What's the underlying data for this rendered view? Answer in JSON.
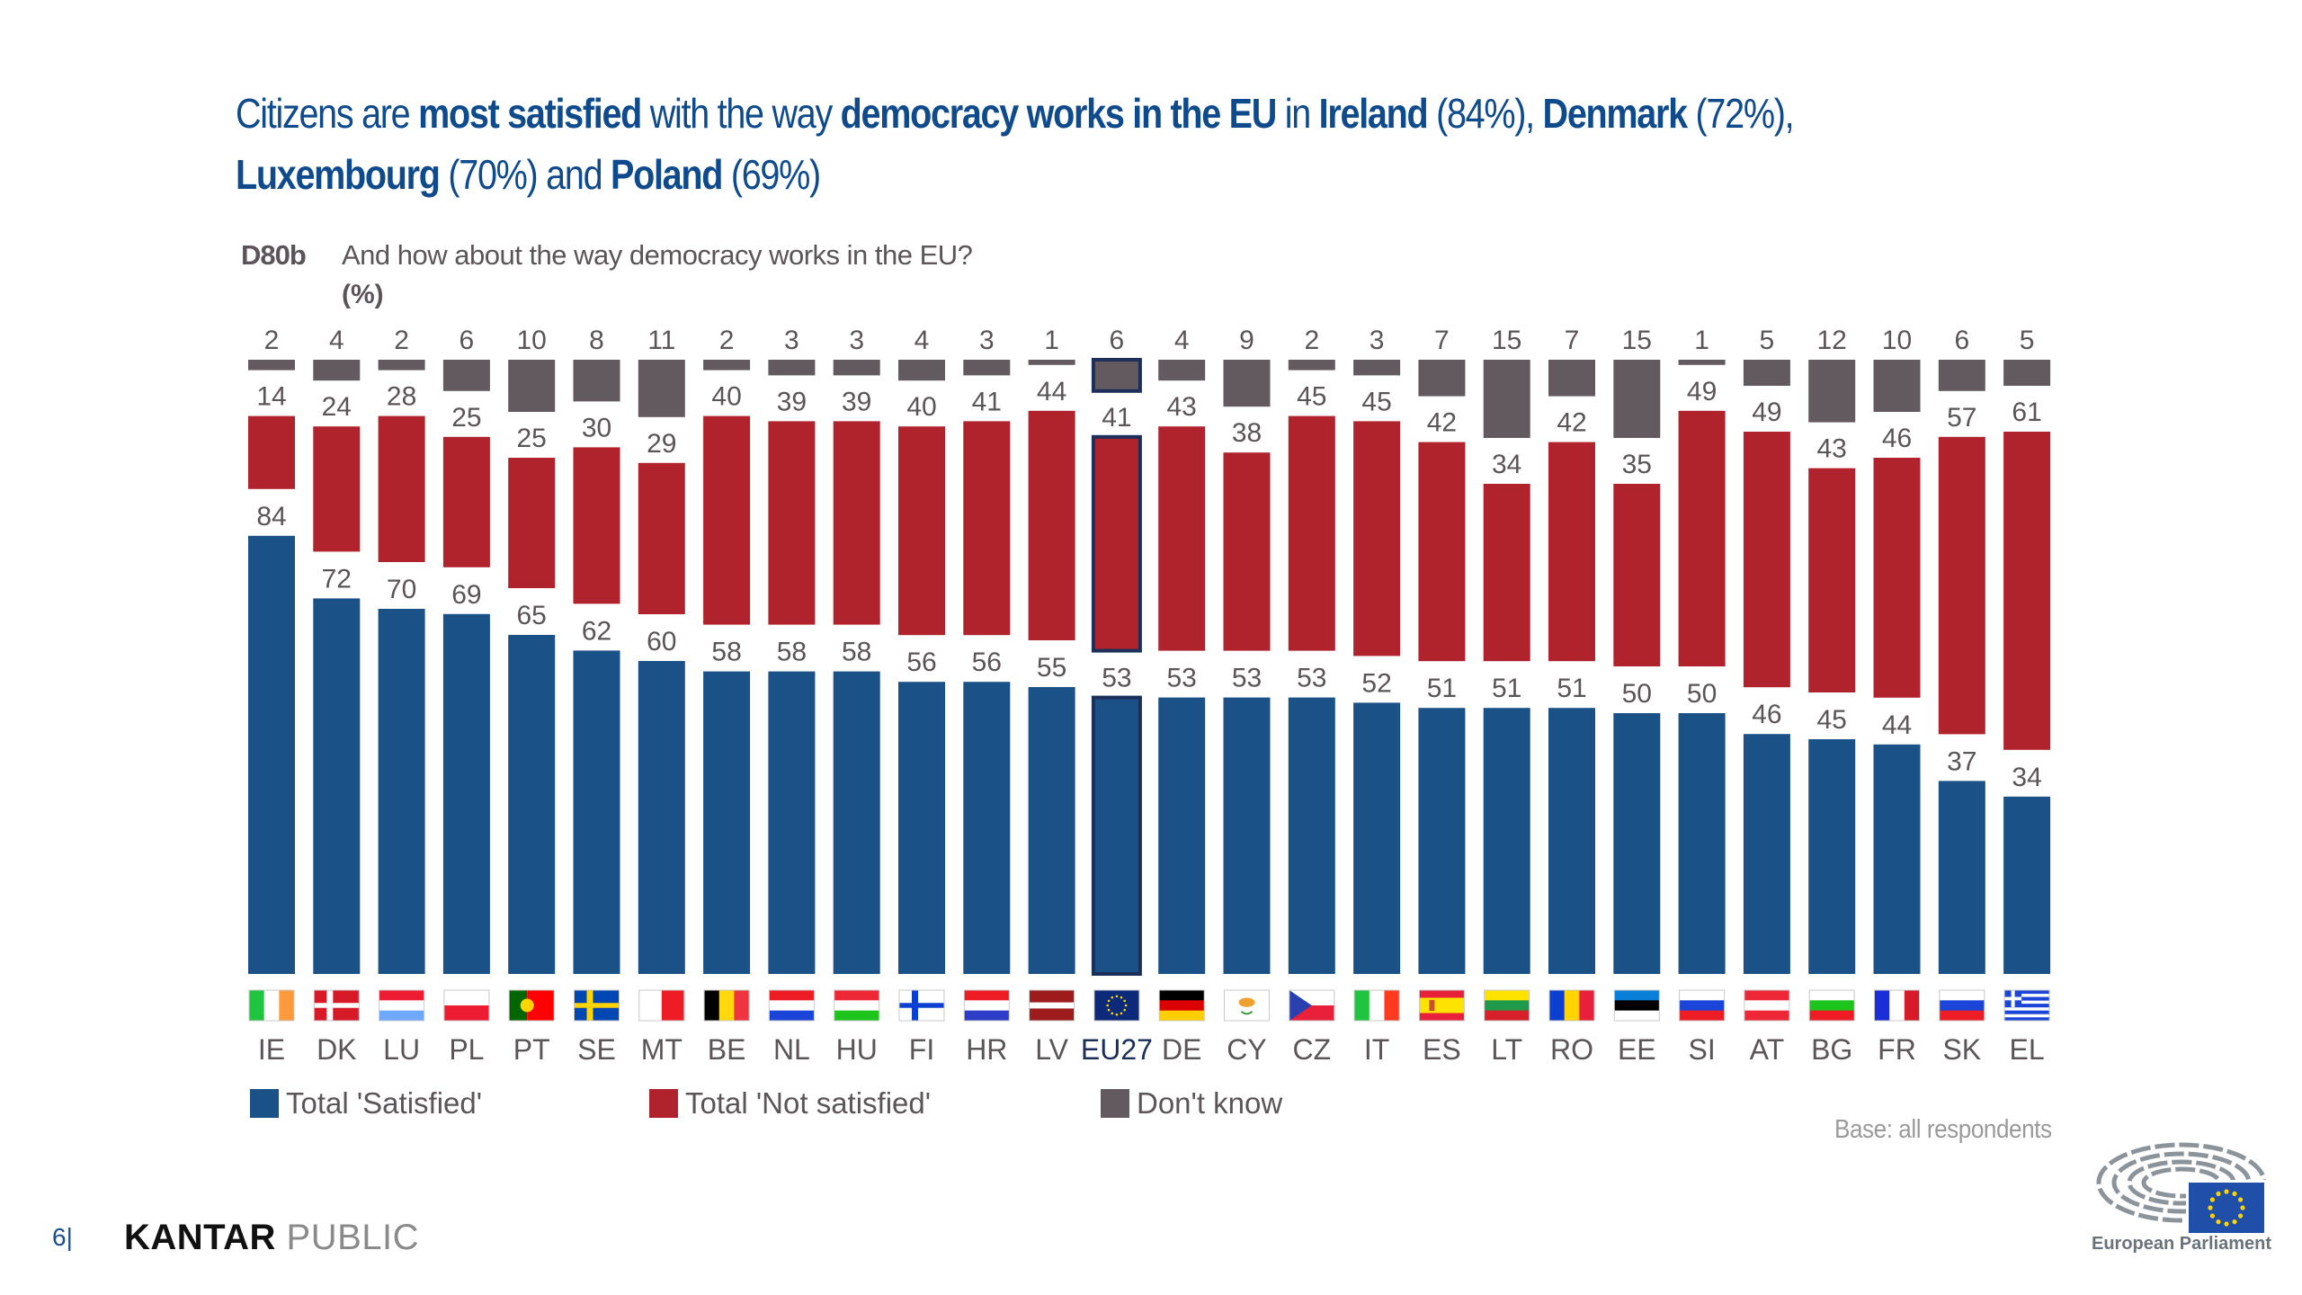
{
  "title": {
    "segments": [
      {
        "text": "Citizens are ",
        "bold": false
      },
      {
        "text": "most satisfied",
        "bold": true
      },
      {
        "text": " with the way ",
        "bold": false
      },
      {
        "text": "democracy works in the EU",
        "bold": true
      },
      {
        "text": " in ",
        "bold": false
      },
      {
        "text": "Ireland",
        "bold": true
      },
      {
        "text": " (84%), ",
        "bold": false
      },
      {
        "text": "Denmark",
        "bold": true
      },
      {
        "text": " (72%), ",
        "bold": false
      },
      {
        "text": "Luxembourg",
        "bold": true
      },
      {
        "text": " (70%) and ",
        "bold": false
      },
      {
        "text": "Poland",
        "bold": true
      },
      {
        "text": " (69%)",
        "bold": false
      }
    ]
  },
  "question": {
    "code": "D80b",
    "text": "And how about the way democracy works in the EU?",
    "unit": "(%)"
  },
  "chart_data": {
    "type": "bar",
    "stacked": true,
    "title": "D80b And how about the way democracy works in the EU? (%)",
    "xlabel": "",
    "ylabel": "%",
    "categories": [
      "IE",
      "DK",
      "LU",
      "PL",
      "PT",
      "SE",
      "MT",
      "BE",
      "NL",
      "HU",
      "FI",
      "HR",
      "LV",
      "EU27",
      "DE",
      "CY",
      "CZ",
      "IT",
      "ES",
      "LT",
      "RO",
      "EE",
      "SI",
      "AT",
      "BG",
      "FR",
      "SK",
      "EL"
    ],
    "highlight": "EU27",
    "series": [
      {
        "name": "Total 'Satisfied'",
        "color": "#1a5186",
        "values": [
          84,
          72,
          70,
          69,
          65,
          62,
          60,
          58,
          58,
          58,
          56,
          56,
          55,
          53,
          53,
          53,
          53,
          52,
          51,
          51,
          51,
          50,
          50,
          46,
          45,
          44,
          37,
          34
        ]
      },
      {
        "name": "Total 'Not satisfied'",
        "color": "#b0232c",
        "values": [
          14,
          24,
          28,
          25,
          25,
          30,
          29,
          40,
          39,
          39,
          40,
          41,
          44,
          41,
          43,
          38,
          45,
          45,
          42,
          34,
          42,
          35,
          49,
          49,
          43,
          46,
          57,
          61
        ]
      },
      {
        "name": "Don't know",
        "color": "#625a5f",
        "values": [
          2,
          4,
          2,
          6,
          10,
          8,
          11,
          2,
          3,
          3,
          4,
          3,
          1,
          6,
          4,
          9,
          2,
          3,
          7,
          15,
          7,
          15,
          1,
          5,
          12,
          10,
          6,
          5
        ]
      }
    ],
    "legend": "bottom-left",
    "grid": false
  },
  "flags": {
    "IE": {
      "type": "v",
      "colors": [
        "#1fc43f",
        "#ffffff",
        "#ff9a3a"
      ]
    },
    "DK": {
      "type": "nordic",
      "colors": [
        "#d71a28",
        "#ffffff"
      ]
    },
    "LU": {
      "type": "h",
      "colors": [
        "#ee1c33",
        "#ffffff",
        "#6ea8ff"
      ]
    },
    "PL": {
      "type": "h",
      "colors": [
        "#ffffff",
        "#ee1c33"
      ]
    },
    "PT": {
      "type": "pt",
      "colors": [
        "#006600",
        "#ff0000"
      ]
    },
    "SE": {
      "type": "nordic",
      "colors": [
        "#0047b3",
        "#ffd400"
      ]
    },
    "MT": {
      "type": "v",
      "colors": [
        "#ffffff",
        "#ee1c25"
      ]
    },
    "BE": {
      "type": "v",
      "colors": [
        "#000000",
        "#ffd90c",
        "#ef3340"
      ]
    },
    "NL": {
      "type": "h",
      "colors": [
        "#ee1c25",
        "#ffffff",
        "#1b45d9"
      ]
    },
    "HU": {
      "type": "h",
      "colors": [
        "#ee2737",
        "#ffffff",
        "#1cc41c"
      ]
    },
    "FI": {
      "type": "nordic",
      "colors": [
        "#ffffff",
        "#0a3fd1"
      ]
    },
    "HR": {
      "type": "h",
      "colors": [
        "#ee1c25",
        "#ffffff",
        "#2e3dc8"
      ]
    },
    "LV": {
      "type": "h3",
      "colors": [
        "#9e1b1b",
        "#ffffff",
        "#9e1b1b"
      ]
    },
    "EU27": {
      "type": "eu",
      "colors": [
        "#0d2a7a",
        "#ffd400"
      ]
    },
    "DE": {
      "type": "h",
      "colors": [
        "#000000",
        "#dd0000",
        "#ffce00"
      ]
    },
    "CY": {
      "type": "cy",
      "colors": [
        "#ffffff",
        "#f0a030"
      ]
    },
    "CZ": {
      "type": "cz",
      "colors": [
        "#ffffff",
        "#e8203a",
        "#2a3fb0"
      ]
    },
    "IT": {
      "type": "v",
      "colors": [
        "#1fc43f",
        "#ffffff",
        "#ff3b1f"
      ]
    },
    "ES": {
      "type": "es",
      "colors": [
        "#e8203a",
        "#ffe300",
        "#e8203a"
      ]
    },
    "LT": {
      "type": "h",
      "colors": [
        "#ffe300",
        "#1e9a4a",
        "#d7202a"
      ]
    },
    "RO": {
      "type": "v",
      "colors": [
        "#0a3fd1",
        "#ffd400",
        "#e8203a"
      ]
    },
    "EE": {
      "type": "h",
      "colors": [
        "#0a7fd9",
        "#000000",
        "#ffffff"
      ]
    },
    "SI": {
      "type": "h",
      "colors": [
        "#ffffff",
        "#1b45d9",
        "#ee1c25"
      ]
    },
    "AT": {
      "type": "h",
      "colors": [
        "#ee2737",
        "#ffffff",
        "#ee2737"
      ]
    },
    "BG": {
      "type": "h",
      "colors": [
        "#ffffff",
        "#1cc41c",
        "#ee1c25"
      ]
    },
    "FR": {
      "type": "v",
      "colors": [
        "#1b2fd9",
        "#ffffff",
        "#d71a28"
      ]
    },
    "SK": {
      "type": "h",
      "colors": [
        "#ffffff",
        "#1b45d9",
        "#ee1c25"
      ]
    },
    "EL": {
      "type": "el",
      "colors": [
        "#1b45d9",
        "#ffffff"
      ]
    }
  },
  "legend": [
    {
      "label": "Total 'Satisfied'",
      "color": "#1a5186"
    },
    {
      "label": "Total 'Not satisfied'",
      "color": "#b0232c"
    },
    {
      "label": "Don't know",
      "color": "#625a5f"
    }
  ],
  "footer": {
    "base_note": "Base: all respondents",
    "page_number": "6|",
    "brand_primary": "KANTAR",
    "brand_secondary": "PUBLIC",
    "ep_label": "European Parliament"
  }
}
